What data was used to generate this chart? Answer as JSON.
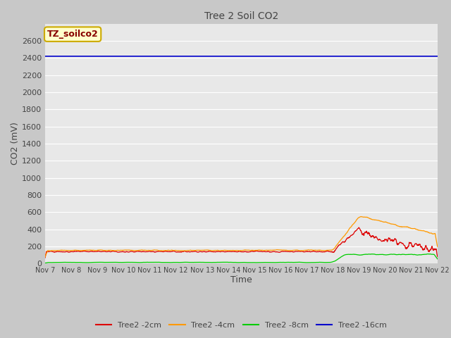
{
  "title": "Tree 2 Soil CO2",
  "xlabel": "Time",
  "ylabel": "CO2 (mV)",
  "ylim": [
    0,
    2800
  ],
  "yticks": [
    0,
    200,
    400,
    600,
    800,
    1000,
    1200,
    1400,
    1600,
    1800,
    2000,
    2200,
    2400,
    2600
  ],
  "fig_bg_color": "#c8c8c8",
  "plot_bg_color": "#e8e8e8",
  "grid_color": "#ffffff",
  "legend_label": "TZ_soilco2",
  "legend_bg": "#ffffcc",
  "legend_border": "#ccaa00",
  "x_tick_labels": [
    "Nov 7",
    "Nov 8",
    "Nov 9",
    "Nov 10",
    "Nov 11",
    "Nov 12",
    "Nov 13",
    "Nov 14",
    "Nov 15",
    "Nov 16",
    "Nov 17",
    "Nov 18",
    "Nov 19",
    "Nov 20",
    "Nov 21",
    "Nov 22"
  ],
  "series": [
    {
      "label": "Tree2 -2cm",
      "color": "#dd0000"
    },
    {
      "label": "Tree2 -4cm",
      "color": "#ff9900"
    },
    {
      "label": "Tree2 -8cm",
      "color": "#00cc00"
    },
    {
      "label": "Tree2 -16cm",
      "color": "#0000cc"
    }
  ],
  "blue_line_value": 2420,
  "n_pts": 1500,
  "n_days": 15,
  "rise_day": 11,
  "peak_day": 12,
  "seed": 42
}
